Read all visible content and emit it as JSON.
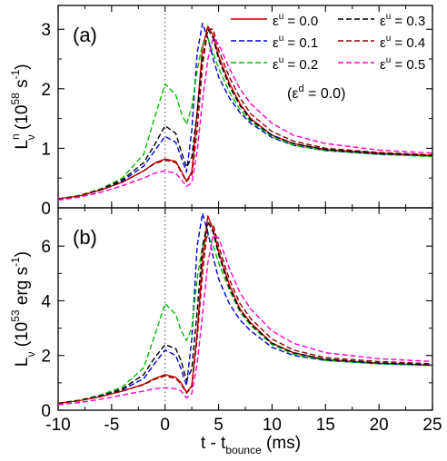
{
  "chart_data": [
    {
      "type": "line",
      "panel_label": "(a)",
      "ylabel": {
        "main": "L",
        "sup": "n",
        "sub": "ν",
        "unit": "(10",
        "exp": "58",
        "unit2": "s",
        "unitexp": "-1",
        "close": ")"
      },
      "xlim": [
        -10,
        25
      ],
      "ylim": [
        0,
        3.4
      ],
      "yticks": [
        0,
        1,
        2,
        3
      ],
      "annotation": "(ε^d = 0.0)",
      "annotation_parts": [
        "(ε",
        "d",
        " = 0.0)"
      ],
      "series": [
        {
          "name": "ε^u = 0.0",
          "color": "#cc0000",
          "dash": "solid",
          "x": [
            -10,
            -8,
            -6,
            -4,
            -2,
            -1,
            0,
            1,
            1.5,
            2,
            2.5,
            3,
            3.5,
            4,
            4.5,
            5,
            6,
            7,
            8,
            10,
            12,
            15,
            20,
            25
          ],
          "y": [
            0.15,
            0.2,
            0.3,
            0.43,
            0.62,
            0.75,
            0.82,
            0.78,
            0.62,
            0.45,
            0.6,
            1.6,
            2.7,
            3.05,
            2.9,
            2.55,
            2.1,
            1.75,
            1.5,
            1.22,
            1.08,
            0.98,
            0.92,
            0.88
          ]
        },
        {
          "name": "ε^u = 0.1",
          "color": "#0000cc",
          "dash": "dashed",
          "x": [
            -10,
            -8,
            -6,
            -4,
            -2,
            -1,
            0,
            1,
            1.5,
            2,
            2.5,
            3,
            3.5,
            4,
            4.5,
            5,
            6,
            7,
            8,
            10,
            12,
            15,
            20,
            25
          ],
          "y": [
            0.15,
            0.2,
            0.3,
            0.45,
            0.7,
            0.95,
            1.2,
            1.1,
            0.85,
            0.6,
            1.3,
            2.6,
            3.1,
            2.85,
            2.5,
            2.2,
            1.85,
            1.6,
            1.42,
            1.18,
            1.05,
            0.96,
            0.9,
            0.87
          ]
        },
        {
          "name": "ε^u = 0.2",
          "color": "#00bb00",
          "dash": "dashed",
          "x": [
            -10,
            -8,
            -6,
            -4,
            -2,
            -1,
            0,
            1,
            1.5,
            2,
            2.5,
            3,
            3.5,
            4,
            4.5,
            5,
            6,
            7,
            8,
            10,
            12,
            15,
            20,
            25
          ],
          "y": [
            0.15,
            0.21,
            0.32,
            0.5,
            0.9,
            1.5,
            2.08,
            1.9,
            1.6,
            1.4,
            1.7,
            2.3,
            2.75,
            2.85,
            2.6,
            2.35,
            1.95,
            1.65,
            1.45,
            1.2,
            1.05,
            0.96,
            0.9,
            0.86
          ]
        },
        {
          "name": "ε^u = 0.3",
          "color": "#000000",
          "dash": "dashed",
          "x": [
            -10,
            -8,
            -6,
            -4,
            -2,
            -1,
            0,
            1,
            1.5,
            2,
            2.5,
            3,
            3.5,
            4,
            4.5,
            5,
            6,
            7,
            8,
            10,
            12,
            15,
            20,
            25
          ],
          "y": [
            0.15,
            0.2,
            0.31,
            0.47,
            0.76,
            1.05,
            1.38,
            1.25,
            0.95,
            0.68,
            0.85,
            1.6,
            2.5,
            3.0,
            2.85,
            2.5,
            2.05,
            1.72,
            1.48,
            1.22,
            1.08,
            0.98,
            0.91,
            0.88
          ]
        },
        {
          "name": "ε^u = 0.4",
          "color": "#8b0000",
          "dash": "dashed",
          "x": [
            -10,
            -8,
            -6,
            -4,
            -2,
            -1,
            0,
            1,
            1.5,
            2,
            2.5,
            3,
            3.5,
            4,
            4.5,
            5,
            6,
            7,
            8,
            10,
            12,
            15,
            20,
            25
          ],
          "y": [
            0.15,
            0.2,
            0.3,
            0.43,
            0.62,
            0.74,
            0.8,
            0.76,
            0.6,
            0.44,
            0.55,
            1.3,
            2.4,
            3.0,
            3.0,
            2.65,
            2.2,
            1.85,
            1.58,
            1.28,
            1.12,
            1.0,
            0.93,
            0.89
          ]
        },
        {
          "name": "ε^u = 0.5",
          "color": "#ff00cc",
          "dash": "dashed",
          "x": [
            -10,
            -8,
            -6,
            -4,
            -2,
            -1,
            0,
            1,
            1.5,
            2,
            2.5,
            3,
            3.5,
            4,
            4.5,
            5,
            6,
            7,
            8,
            10,
            12,
            15,
            20,
            25
          ],
          "y": [
            0.13,
            0.18,
            0.26,
            0.37,
            0.5,
            0.58,
            0.62,
            0.58,
            0.48,
            0.36,
            0.42,
            0.95,
            1.8,
            2.5,
            2.85,
            2.75,
            2.35,
            2.0,
            1.75,
            1.42,
            1.22,
            1.08,
            0.97,
            0.92
          ]
        }
      ]
    },
    {
      "type": "line",
      "panel_label": "(b)",
      "ylabel": {
        "main": "L",
        "sub": "ν",
        "unit": "(10",
        "exp": "53",
        "unit2": "erg s",
        "unitexp": "-1",
        "close": ")"
      },
      "xlim": [
        -10,
        25
      ],
      "ylim": [
        0,
        7.4
      ],
      "yticks": [
        0,
        2,
        4,
        6
      ],
      "xticks": [
        -10,
        -5,
        0,
        5,
        10,
        15,
        20,
        25
      ],
      "xlabel": {
        "main": "t - t",
        "sub": "bounce",
        "unit": " (ms)"
      },
      "series": [
        {
          "name": "ε^u = 0.0",
          "color": "#cc0000",
          "dash": "solid",
          "x": [
            -10,
            -8,
            -6,
            -4,
            -2,
            -1,
            0,
            1,
            1.5,
            2,
            2.5,
            3,
            3.5,
            4,
            4.5,
            5,
            6,
            7,
            8,
            10,
            12,
            15,
            20,
            25
          ],
          "y": [
            0.25,
            0.35,
            0.5,
            0.7,
            0.95,
            1.15,
            1.3,
            1.2,
            1.0,
            0.65,
            0.9,
            2.8,
            5.5,
            7.1,
            6.6,
            5.8,
            4.6,
            3.7,
            3.2,
            2.45,
            2.1,
            1.85,
            1.72,
            1.65
          ]
        },
        {
          "name": "ε^u = 0.1",
          "color": "#0000cc",
          "dash": "dashed",
          "x": [
            -10,
            -8,
            -6,
            -4,
            -2,
            -1,
            0,
            1,
            1.5,
            2,
            2.5,
            3,
            3.5,
            4,
            4.5,
            5,
            6,
            7,
            8,
            10,
            12,
            15,
            20,
            25
          ],
          "y": [
            0.25,
            0.35,
            0.52,
            0.75,
            1.15,
            1.7,
            2.2,
            2.0,
            1.5,
            0.9,
            2.6,
            6.0,
            7.2,
            6.5,
            5.6,
            4.8,
            3.9,
            3.3,
            2.9,
            2.3,
            2.0,
            1.82,
            1.7,
            1.64
          ]
        },
        {
          "name": "ε^u = 0.2",
          "color": "#00bb00",
          "dash": "dashed",
          "x": [
            -10,
            -8,
            -6,
            -4,
            -2,
            -1,
            0,
            1,
            1.5,
            2,
            2.5,
            3,
            3.5,
            4,
            4.5,
            5,
            6,
            7,
            8,
            10,
            12,
            15,
            20,
            25
          ],
          "y": [
            0.26,
            0.37,
            0.56,
            0.85,
            1.55,
            2.7,
            3.9,
            3.5,
            2.9,
            2.55,
            3.0,
            4.8,
            6.0,
            6.4,
            6.0,
            5.4,
            4.4,
            3.6,
            3.1,
            2.4,
            2.05,
            1.82,
            1.7,
            1.63
          ]
        },
        {
          "name": "ε^u = 0.3",
          "color": "#000000",
          "dash": "dashed",
          "x": [
            -10,
            -8,
            -6,
            -4,
            -2,
            -1,
            0,
            1,
            1.5,
            2,
            2.5,
            3,
            3.5,
            4,
            4.5,
            5,
            6,
            7,
            8,
            10,
            12,
            15,
            20,
            25
          ],
          "y": [
            0.25,
            0.36,
            0.53,
            0.78,
            1.3,
            1.9,
            2.4,
            2.25,
            1.8,
            1.1,
            1.5,
            3.6,
            6.0,
            6.9,
            6.5,
            5.7,
            4.5,
            3.65,
            3.15,
            2.45,
            2.1,
            1.86,
            1.73,
            1.66
          ]
        },
        {
          "name": "ε^u = 0.4",
          "color": "#8b0000",
          "dash": "dashed",
          "x": [
            -10,
            -8,
            -6,
            -4,
            -2,
            -1,
            0,
            1,
            1.5,
            2,
            2.5,
            3,
            3.5,
            4,
            4.5,
            5,
            6,
            7,
            8,
            10,
            12,
            15,
            20,
            25
          ],
          "y": [
            0.25,
            0.35,
            0.5,
            0.7,
            0.93,
            1.12,
            1.25,
            1.16,
            0.95,
            0.62,
            0.85,
            2.6,
            5.0,
            6.8,
            6.8,
            6.0,
            4.8,
            3.9,
            3.35,
            2.6,
            2.2,
            1.92,
            1.78,
            1.7
          ]
        },
        {
          "name": "ε^u = 0.5",
          "color": "#ff00cc",
          "dash": "dashed",
          "x": [
            -10,
            -8,
            -6,
            -4,
            -2,
            -1,
            0,
            1,
            1.5,
            2,
            2.5,
            3,
            3.5,
            4,
            4.5,
            5,
            6,
            7,
            8,
            10,
            12,
            15,
            20,
            25
          ],
          "y": [
            0.2,
            0.28,
            0.4,
            0.55,
            0.7,
            0.78,
            0.82,
            0.78,
            0.7,
            0.45,
            0.6,
            1.7,
            3.5,
            5.4,
            6.4,
            6.3,
            5.2,
            4.3,
            3.7,
            2.9,
            2.45,
            2.1,
            1.88,
            1.78
          ]
        }
      ]
    }
  ],
  "legend_labels": [
    {
      "prefix": "ε",
      "sup": "u",
      "suffix": " = 0.0"
    },
    {
      "prefix": "ε",
      "sup": "u",
      "suffix": " = 0.1"
    },
    {
      "prefix": "ε",
      "sup": "u",
      "suffix": " = 0.2"
    },
    {
      "prefix": "ε",
      "sup": "u",
      "suffix": " = 0.3"
    },
    {
      "prefix": "ε",
      "sup": "u",
      "suffix": " = 0.4"
    },
    {
      "prefix": "ε",
      "sup": "u",
      "suffix": " = 0.5"
    }
  ],
  "reference_line_x": 0
}
